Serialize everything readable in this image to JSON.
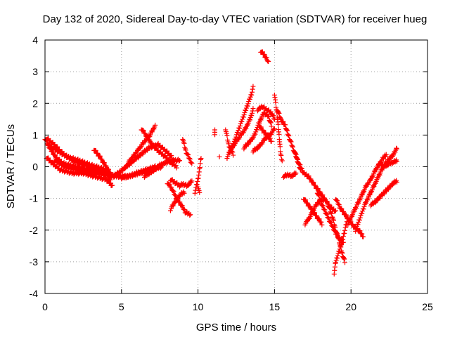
{
  "chart_data": {
    "type": "scatter",
    "title": "Day 132 of 2020, Sidereal Day-to-day VTEC variation (SDTVAR) for receiver hueg",
    "xlabel": "GPS time / hours",
    "ylabel": "SDTVAR / TECUs",
    "xlim": [
      0,
      25
    ],
    "ylim": [
      -4,
      4
    ],
    "x_ticks": [
      0,
      5,
      10,
      15,
      20,
      25
    ],
    "y_ticks": [
      -4,
      -3,
      -2,
      -1,
      0,
      1,
      2,
      3,
      4
    ],
    "x_tick_labels": [
      "0",
      "5",
      "10",
      "15",
      "20",
      "25"
    ],
    "y_tick_labels": [
      "-4",
      "-3",
      "-2",
      "-1",
      "0",
      "1",
      "2",
      "3",
      "4"
    ],
    "grid": true,
    "marker": "plus",
    "color": "#ff0000",
    "series": [
      {
        "name": "SDTVAR",
        "traces": [
          [
            [
              0.0,
              0.9
            ],
            [
              0.3,
              0.6
            ],
            [
              0.7,
              0.3
            ],
            [
              1.2,
              0.1
            ],
            [
              2.0,
              0.0
            ],
            [
              3.0,
              -0.1
            ],
            [
              3.8,
              -0.2
            ],
            [
              4.5,
              -0.3
            ],
            [
              5.5,
              -0.3
            ],
            [
              6.2,
              -0.2
            ],
            [
              7.0,
              -0.1
            ],
            [
              7.6,
              0.0
            ]
          ],
          [
            [
              0.1,
              0.3
            ],
            [
              0.5,
              0.1
            ],
            [
              1.0,
              -0.1
            ],
            [
              1.8,
              -0.2
            ],
            [
              2.5,
              -0.2
            ],
            [
              3.2,
              -0.3
            ],
            [
              4.0,
              -0.4
            ],
            [
              4.4,
              -0.6
            ]
          ],
          [
            [
              0.2,
              0.7
            ],
            [
              0.8,
              0.5
            ],
            [
              1.5,
              0.3
            ],
            [
              2.2,
              0.2
            ],
            [
              3.0,
              0.05
            ],
            [
              4.0,
              -0.1
            ],
            [
              4.3,
              -0.5
            ]
          ],
          [
            [
              0.1,
              0.9
            ],
            [
              0.6,
              0.7
            ],
            [
              1.2,
              0.4
            ],
            [
              1.8,
              0.2
            ],
            [
              2.6,
              0.05
            ],
            [
              3.4,
              -0.1
            ],
            [
              4.0,
              -0.25
            ]
          ],
          [
            [
              0.6,
              0.2
            ],
            [
              1.3,
              0.0
            ],
            [
              2.2,
              -0.1
            ],
            [
              3.3,
              -0.2
            ],
            [
              4.2,
              -0.25
            ]
          ],
          [
            [
              3.2,
              0.55
            ],
            [
              3.6,
              0.3
            ],
            [
              4.0,
              0.0
            ],
            [
              4.4,
              -0.3
            ],
            [
              4.8,
              -0.2
            ],
            [
              5.3,
              0.0
            ],
            [
              5.8,
              0.2
            ],
            [
              6.3,
              0.4
            ],
            [
              6.8,
              0.6
            ],
            [
              7.4,
              0.7
            ],
            [
              7.9,
              0.5
            ],
            [
              8.3,
              0.3
            ]
          ],
          [
            [
              6.3,
              1.2
            ],
            [
              6.6,
              1.0
            ],
            [
              7.0,
              0.7
            ],
            [
              7.4,
              0.5
            ],
            [
              7.9,
              0.3
            ],
            [
              8.3,
              0.1
            ],
            [
              8.6,
              0.0
            ]
          ],
          [
            [
              5.4,
              0.1
            ],
            [
              5.8,
              0.35
            ],
            [
              6.2,
              0.6
            ],
            [
              6.5,
              0.8
            ],
            [
              6.8,
              0.95
            ],
            [
              7.2,
              1.3
            ]
          ],
          [
            [
              6.5,
              -0.3
            ],
            [
              7.0,
              -0.15
            ],
            [
              7.5,
              0.05
            ],
            [
              8.0,
              0.15
            ],
            [
              8.4,
              0.2
            ],
            [
              8.8,
              0.2
            ]
          ],
          [
            [
              5.0,
              -0.35
            ],
            [
              5.5,
              -0.3
            ],
            [
              6.0,
              -0.2
            ],
            [
              6.6,
              -0.1
            ],
            [
              7.2,
              0.0
            ]
          ],
          [
            [
              8.0,
              -0.5
            ],
            [
              8.3,
              -0.7
            ],
            [
              8.6,
              -1.0
            ],
            [
              8.9,
              -1.2
            ],
            [
              9.2,
              -1.45
            ],
            [
              9.5,
              -1.5
            ]
          ],
          [
            [
              8.2,
              -0.4
            ],
            [
              8.5,
              -0.5
            ],
            [
              8.8,
              -0.6
            ],
            [
              9.0,
              -0.55
            ],
            [
              9.3,
              -0.6
            ],
            [
              9.6,
              -0.45
            ]
          ],
          [
            [
              8.2,
              -1.35
            ],
            [
              8.5,
              -1.1
            ],
            [
              8.8,
              -0.9
            ],
            [
              9.1,
              -0.8
            ]
          ],
          [
            [
              9.0,
              0.9
            ],
            [
              9.2,
              0.5
            ],
            [
              9.4,
              0.3
            ],
            [
              9.6,
              0.1
            ]
          ],
          [
            [
              9.8,
              -0.8
            ],
            [
              10.0,
              -0.4
            ],
            [
              10.1,
              -0.1
            ],
            [
              10.2,
              0.3
            ]
          ],
          [
            [
              10.0,
              -0.6
            ],
            [
              10.1,
              -0.85
            ]
          ],
          [
            [
              11.1,
              1.2
            ],
            [
              11.1,
              1.0
            ]
          ],
          [
            [
              11.4,
              0.35
            ]
          ],
          [
            [
              11.8,
              1.2
            ],
            [
              12.0,
              0.7
            ],
            [
              12.3,
              0.4
            ]
          ],
          [
            [
              11.9,
              0.3
            ],
            [
              12.3,
              0.7
            ],
            [
              12.6,
              1.1
            ],
            [
              12.9,
              1.5
            ],
            [
              13.2,
              1.9
            ],
            [
              13.5,
              2.3
            ],
            [
              13.6,
              2.5
            ]
          ],
          [
            [
              12.1,
              0.5
            ],
            [
              12.5,
              0.8
            ],
            [
              12.8,
              1.0
            ],
            [
              13.1,
              1.2
            ],
            [
              13.4,
              1.5
            ],
            [
              13.6,
              1.8
            ]
          ],
          [
            [
              13.0,
              0.6
            ],
            [
              13.4,
              0.8
            ],
            [
              13.7,
              1.0
            ],
            [
              14.0,
              1.4
            ],
            [
              14.3,
              1.7
            ],
            [
              14.6,
              1.6
            ],
            [
              14.8,
              1.3
            ]
          ],
          [
            [
              14.1,
              3.65
            ],
            [
              14.3,
              3.55
            ],
            [
              14.5,
              3.4
            ],
            [
              14.6,
              3.3
            ]
          ],
          [
            [
              13.9,
              1.8
            ],
            [
              14.2,
              1.9
            ],
            [
              14.5,
              1.8
            ],
            [
              14.8,
              1.7
            ],
            [
              15.0,
              1.5
            ]
          ],
          [
            [
              13.6,
              0.5
            ],
            [
              13.9,
              0.6
            ],
            [
              14.1,
              0.7
            ],
            [
              14.4,
              0.9
            ],
            [
              14.7,
              1.0
            ],
            [
              15.0,
              1.2
            ]
          ],
          [
            [
              14.0,
              1.3
            ],
            [
              14.3,
              1.1
            ],
            [
              14.6,
              0.95
            ],
            [
              14.8,
              0.8
            ]
          ],
          [
            [
              15.0,
              2.3
            ],
            [
              15.1,
              1.9
            ],
            [
              15.2,
              1.5
            ],
            [
              15.3,
              1.0
            ],
            [
              15.4,
              0.4
            ],
            [
              15.5,
              0.2
            ]
          ],
          [
            [
              15.2,
              1.8
            ],
            [
              15.4,
              1.5
            ],
            [
              15.7,
              1.3
            ],
            [
              15.9,
              1.0
            ],
            [
              16.2,
              0.6
            ],
            [
              16.5,
              0.2
            ],
            [
              16.7,
              -0.1
            ]
          ],
          [
            [
              15.6,
              -0.3
            ],
            [
              15.9,
              -0.25
            ],
            [
              16.1,
              -0.3
            ],
            [
              16.4,
              -0.2
            ]
          ],
          [
            [
              16.3,
              0.5
            ],
            [
              16.6,
              0.1
            ],
            [
              16.9,
              -0.2
            ],
            [
              17.2,
              -0.3
            ],
            [
              17.5,
              -0.5
            ],
            [
              17.8,
              -0.7
            ],
            [
              18.1,
              -0.9
            ],
            [
              18.4,
              -1.1
            ],
            [
              18.7,
              -1.3
            ],
            [
              19.0,
              -1.4
            ]
          ],
          [
            [
              16.9,
              -1.0
            ],
            [
              17.2,
              -1.2
            ],
            [
              17.5,
              -1.4
            ],
            [
              17.8,
              -1.6
            ],
            [
              18.1,
              -1.8
            ]
          ],
          [
            [
              17.0,
              -1.8
            ],
            [
              17.3,
              -1.6
            ],
            [
              17.6,
              -1.3
            ],
            [
              17.9,
              -1.1
            ],
            [
              18.2,
              -1.05
            ]
          ],
          [
            [
              17.8,
              -0.8
            ],
            [
              18.1,
              -1.2
            ],
            [
              18.4,
              -1.5
            ],
            [
              18.7,
              -1.8
            ],
            [
              19.0,
              -2.1
            ],
            [
              19.3,
              -2.3
            ],
            [
              19.5,
              -2.4
            ]
          ],
          [
            [
              18.5,
              -1.2
            ],
            [
              18.8,
              -1.6
            ],
            [
              19.0,
              -2.0
            ],
            [
              19.2,
              -2.3
            ],
            [
              19.4,
              -2.7
            ],
            [
              19.6,
              -3.0
            ]
          ],
          [
            [
              18.9,
              -3.35
            ],
            [
              19.0,
              -3.0
            ],
            [
              19.2,
              -2.7
            ],
            [
              19.4,
              -2.4
            ],
            [
              19.6,
              -2.0
            ],
            [
              19.8,
              -1.6
            ]
          ],
          [
            [
              19.0,
              -1.0
            ],
            [
              19.3,
              -1.3
            ],
            [
              19.6,
              -1.5
            ],
            [
              19.9,
              -1.7
            ],
            [
              20.2,
              -1.9
            ],
            [
              20.5,
              -2.0
            ],
            [
              20.8,
              -2.2
            ]
          ],
          [
            [
              19.8,
              -1.8
            ],
            [
              20.1,
              -1.5
            ],
            [
              20.4,
              -1.2
            ],
            [
              20.7,
              -0.9
            ],
            [
              21.0,
              -0.6
            ],
            [
              21.3,
              -0.4
            ],
            [
              21.6,
              -0.1
            ],
            [
              22.0,
              0.2
            ],
            [
              22.3,
              0.4
            ]
          ],
          [
            [
              20.3,
              -2.0
            ],
            [
              20.6,
              -1.6
            ],
            [
              20.9,
              -1.2
            ],
            [
              21.2,
              -0.9
            ],
            [
              21.5,
              -0.6
            ],
            [
              21.8,
              -0.3
            ],
            [
              22.1,
              0.0
            ],
            [
              22.4,
              0.2
            ],
            [
              22.8,
              0.4
            ],
            [
              23.0,
              0.6
            ]
          ],
          [
            [
              21.3,
              -1.2
            ],
            [
              21.6,
              -1.1
            ],
            [
              22.0,
              -0.9
            ],
            [
              22.4,
              -0.7
            ],
            [
              22.8,
              -0.5
            ],
            [
              23.0,
              -0.45
            ]
          ],
          [
            [
              21.8,
              0.1
            ],
            [
              22.2,
              0.0
            ],
            [
              22.5,
              0.1
            ],
            [
              22.8,
              0.15
            ],
            [
              23.0,
              0.2
            ]
          ]
        ]
      }
    ]
  }
}
